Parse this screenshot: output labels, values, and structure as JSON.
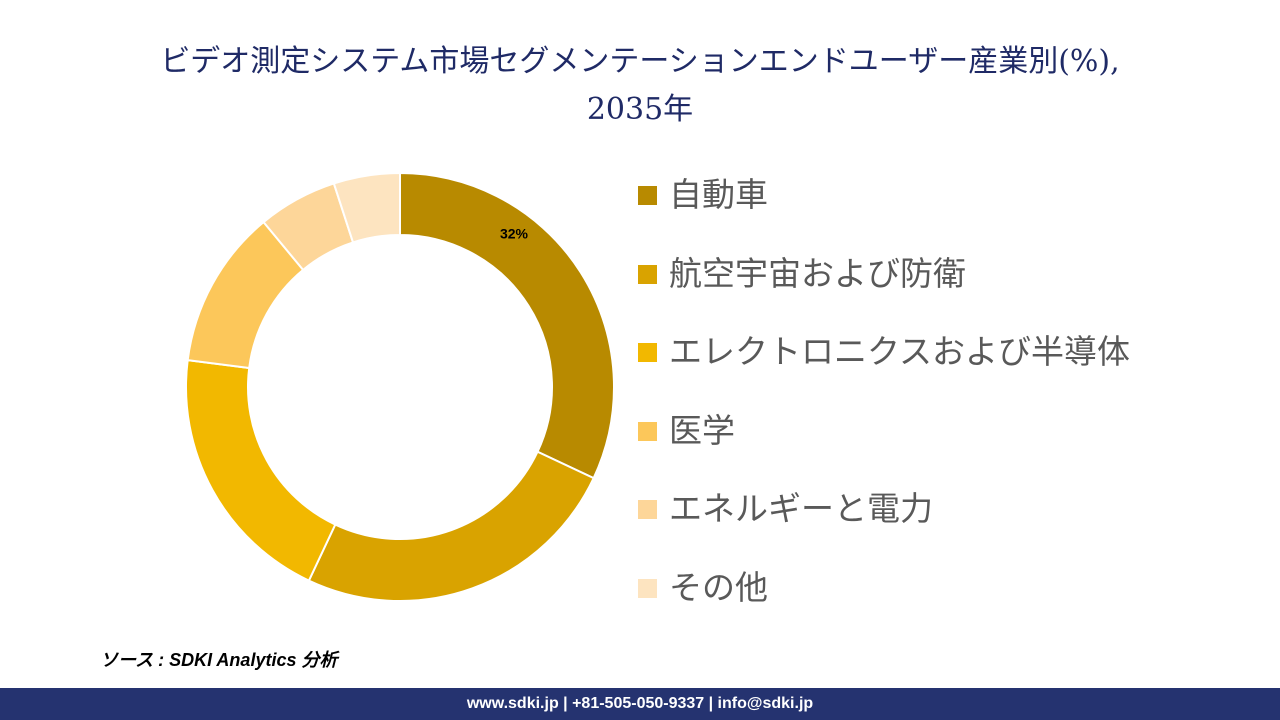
{
  "title_line1": "ビデオ測定システム市場セグメンテーションエンドユーザー産業別(%),",
  "title_line2": "2035年",
  "chart_data": {
    "type": "pie",
    "variant": "donut",
    "title": "ビデオ測定システム市場セグメンテーションエンドユーザー産業別(%), 2035年",
    "categories": [
      "自動車",
      "航空宇宙および防衛",
      "エレクトロニクスおよび半導体",
      "医学",
      "エネルギーと電力",
      "その他"
    ],
    "values": [
      32,
      25,
      20,
      12,
      6,
      5
    ],
    "data_labels": [
      "32%",
      "",
      "",
      "",
      "",
      ""
    ],
    "colors": [
      "#B88A00",
      "#D9A300",
      "#F2B800",
      "#FCC75A",
      "#FDD699",
      "#FDE4C0"
    ],
    "legend": "right"
  },
  "source": "ソース : SDKI Analytics 分析",
  "footer": "www.sdki.jp | +81-505-050-9337 | info@sdki.jp"
}
